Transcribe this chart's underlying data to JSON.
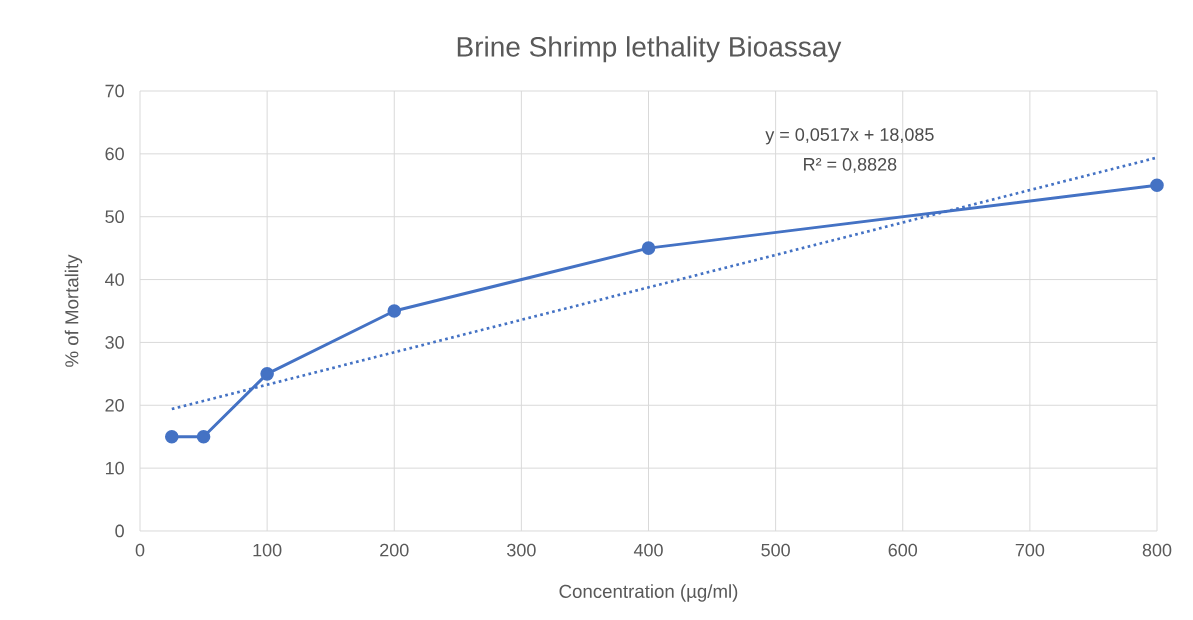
{
  "chart_data": {
    "type": "line",
    "title": "Brine Shrimp lethality Bioassay",
    "xlabel": "Concentration (µg/ml)",
    "ylabel": "% of Mortality",
    "x": [
      25,
      50,
      100,
      200,
      400,
      800
    ],
    "series": [
      {
        "color": "#4472c4",
        "values": [
          15,
          15,
          25,
          35,
          45,
          55
        ],
        "marker": "circle",
        "line_style": "solid"
      },
      {
        "type": "line",
        "color": "#4472c4",
        "x": [
          25,
          800
        ],
        "values": [
          19.4,
          59.4
        ],
        "marker": "none",
        "line_style": "dotted"
      }
    ],
    "annotations": [
      "y = 0,0517x + 18,085",
      "R² = 0,8828"
    ],
    "xlim": [
      0,
      800
    ],
    "xticks": [
      0,
      100,
      200,
      300,
      400,
      500,
      600,
      700,
      800
    ],
    "ylim": [
      0,
      70
    ],
    "yticks": [
      0,
      10,
      20,
      30,
      40,
      50,
      60,
      70
    ],
    "grid": true
  }
}
